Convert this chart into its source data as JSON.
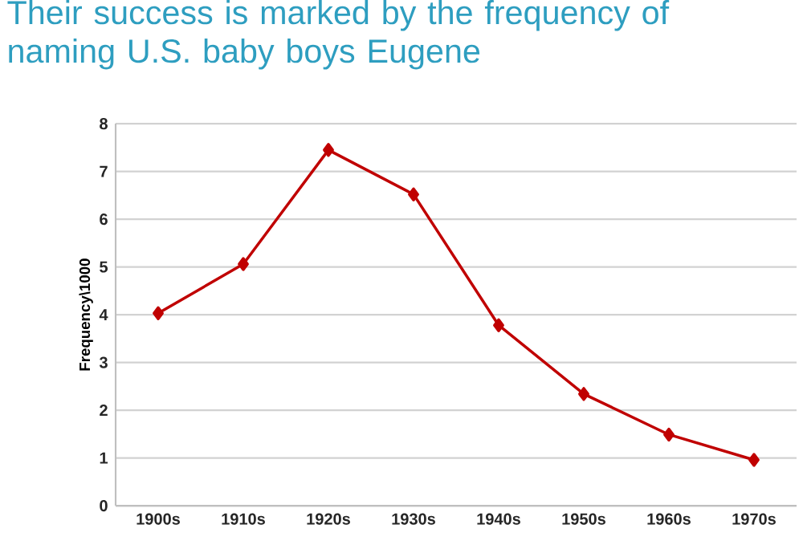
{
  "chart_data": {
    "type": "line",
    "title": "Their success is marked by the frequency of naming U.S. baby boys Eugene",
    "ylabel": "Frequency\\1000",
    "categories": [
      "1900s",
      "1910s",
      "1920s",
      "1930s",
      "1940s",
      "1950s",
      "1960s",
      "1970s"
    ],
    "series": [
      {
        "color": "#c00000",
        "values": [
          4.03,
          5.06,
          7.45,
          6.52,
          3.78,
          2.34,
          1.49,
          0.96
        ]
      }
    ],
    "ylim": [
      0,
      8
    ],
    "yticks": [
      0,
      1,
      2,
      3,
      4,
      5,
      6,
      7,
      8
    ],
    "grid": "y",
    "marker": "diamond",
    "line_style": "solid"
  }
}
